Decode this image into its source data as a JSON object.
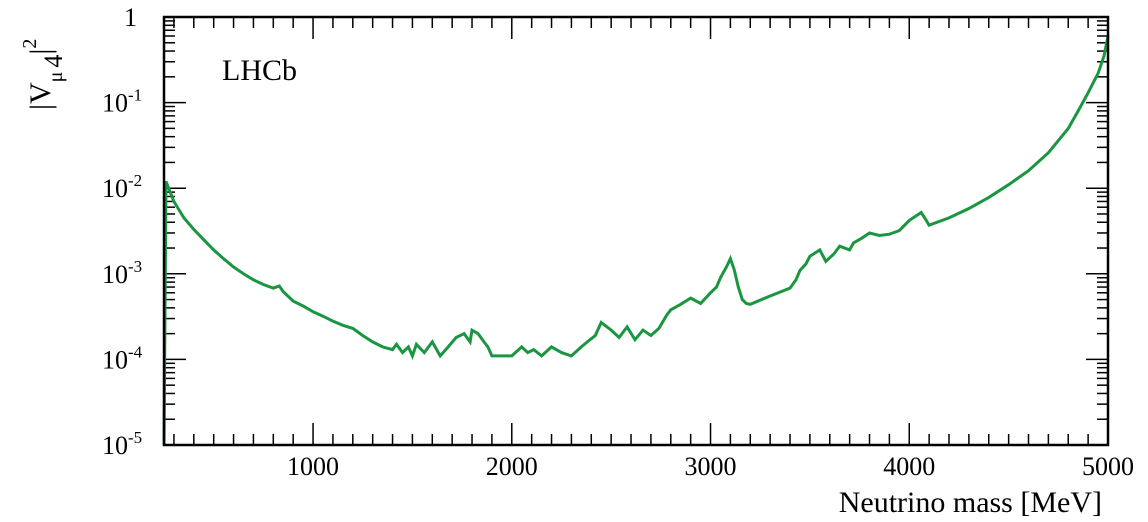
{
  "chart_data": {
    "type": "line",
    "title": "",
    "annotation": "LHCb",
    "xlabel": "Neutrino mass [MeV]",
    "ylabel": {
      "base": "|V",
      "sub_mu": "μ",
      "sub_4": "4",
      "sup": "2",
      "close": "|"
    },
    "xlim": [
      250,
      5000
    ],
    "ylim": [
      1e-05,
      1
    ],
    "yscale": "log",
    "grid": false,
    "legend": "none",
    "line_color": "#1a9641",
    "x_ticks": [
      {
        "value": 1000,
        "label": "1000"
      },
      {
        "value": 2000,
        "label": "2000"
      },
      {
        "value": 3000,
        "label": "3000"
      },
      {
        "value": 4000,
        "label": "4000"
      },
      {
        "value": 5000,
        "label": "5000"
      }
    ],
    "y_ticks": [
      {
        "value": 1e-05,
        "base": "10",
        "exp": "-5"
      },
      {
        "value": 0.0001,
        "base": "10",
        "exp": "-4"
      },
      {
        "value": 0.001,
        "base": "10",
        "exp": "-3"
      },
      {
        "value": 0.01,
        "base": "10",
        "exp": "-2"
      },
      {
        "value": 0.1,
        "base": "10",
        "exp": "-1"
      },
      {
        "value": 1,
        "base": "1",
        "exp": ""
      }
    ],
    "series": [
      {
        "x": [
          250,
          260,
          300,
          350,
          400,
          450,
          500,
          550,
          600,
          650,
          700,
          750,
          800,
          830,
          850,
          900,
          950,
          1000,
          1050,
          1100,
          1150,
          1200,
          1250,
          1300,
          1350,
          1400,
          1420,
          1450,
          1480,
          1500,
          1520,
          1560,
          1600,
          1640,
          1680,
          1720,
          1760,
          1790,
          1800,
          1830,
          1860,
          1880,
          1900,
          2000,
          2050,
          2080,
          2110,
          2150,
          2200,
          2250,
          2300,
          2350,
          2380,
          2420,
          2450,
          2500,
          2540,
          2580,
          2620,
          2660,
          2700,
          2740,
          2780,
          2800,
          2850,
          2900,
          2950,
          3000,
          3030,
          3050,
          3080,
          3100,
          3120,
          3140,
          3160,
          3180,
          3200,
          3300,
          3400,
          3430,
          3450,
          3480,
          3500,
          3550,
          3580,
          3620,
          3650,
          3700,
          3720,
          3760,
          3800,
          3850,
          3900,
          3950,
          4000,
          4060,
          4080,
          4100,
          4200,
          4300,
          4400,
          4500,
          4600,
          4700,
          4800,
          4850,
          4900,
          4950,
          4980,
          5000
        ],
        "y": [
          1e-05,
          0.012,
          0.007,
          0.0045,
          0.0033,
          0.0025,
          0.0019,
          0.0015,
          0.0012,
          0.001,
          0.00085,
          0.00075,
          0.00068,
          0.00072,
          0.00062,
          0.00048,
          0.00042,
          0.00036,
          0.00032,
          0.00028,
          0.00025,
          0.00023,
          0.00019,
          0.00016,
          0.00014,
          0.00013,
          0.00015,
          0.00012,
          0.00014,
          0.00011,
          0.00015,
          0.00012,
          0.00016,
          0.00011,
          0.00014,
          0.00018,
          0.0002,
          0.00016,
          0.00022,
          0.0002,
          0.00016,
          0.00014,
          0.00011,
          0.00011,
          0.00014,
          0.00012,
          0.00013,
          0.00011,
          0.00014,
          0.00012,
          0.00011,
          0.00014,
          0.00016,
          0.00019,
          0.00027,
          0.00022,
          0.00018,
          0.00024,
          0.00017,
          0.00022,
          0.00019,
          0.00023,
          0.00033,
          0.00038,
          0.00044,
          0.00052,
          0.00045,
          0.0006,
          0.0007,
          0.0009,
          0.0012,
          0.0015,
          0.0011,
          0.0007,
          0.0005,
          0.00045,
          0.00044,
          0.00055,
          0.00068,
          0.00085,
          0.0011,
          0.0013,
          0.0016,
          0.0019,
          0.0014,
          0.0017,
          0.0021,
          0.0019,
          0.0023,
          0.0026,
          0.003,
          0.0028,
          0.0029,
          0.0032,
          0.0042,
          0.0052,
          0.0044,
          0.0037,
          0.0045,
          0.0058,
          0.0078,
          0.011,
          0.016,
          0.026,
          0.05,
          0.08,
          0.13,
          0.22,
          0.35,
          0.6
        ]
      }
    ]
  }
}
